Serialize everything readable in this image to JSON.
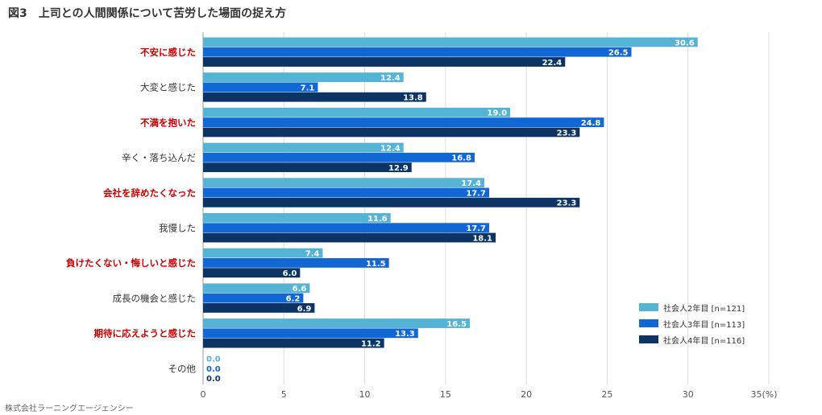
{
  "title": "図3　上司との人間関係について苦労した場面の捉え方",
  "footer": "株式会社ラーニングエージェンシー",
  "colors": {
    "series1": "#55b4d6",
    "series2": "#1167d4",
    "series3": "#0c3566",
    "highlight_label": "#cc0000",
    "normal_label": "#333333",
    "grid": "#dddddd"
  },
  "legend": [
    {
      "label": "社会人2年目 [n=121]"
    },
    {
      "label": "社会人3年目 [n=113]"
    },
    {
      "label": "社会人4年目 [n=116]"
    }
  ],
  "chart_data": {
    "type": "bar",
    "orientation": "horizontal",
    "title": "図3　上司との人間関係について苦労した場面の捉え方",
    "xlabel": "",
    "ylabel": "",
    "xlim": [
      0,
      35
    ],
    "xticks": [
      "0",
      "5",
      "10",
      "15",
      "20",
      "25",
      "30",
      "35(%)"
    ],
    "categories": [
      "不安に感じた",
      "大変と感じた",
      "不満を抱いた",
      "辛く・落ち込んだ",
      "会社を辞めたくなった",
      "我慢した",
      "負けたくない・悔しいと感じた",
      "成長の機会と感じた",
      "期待に応えようと感じた",
      "その他"
    ],
    "highlighted": [
      true,
      false,
      true,
      false,
      true,
      false,
      true,
      false,
      true,
      false
    ],
    "series": [
      {
        "name": "社会人2年目 [n=121]",
        "values": [
          30.6,
          12.4,
          19.0,
          12.4,
          17.4,
          11.6,
          7.4,
          6.6,
          16.5,
          0.0
        ]
      },
      {
        "name": "社会人3年目 [n=113]",
        "values": [
          26.5,
          7.1,
          24.8,
          16.8,
          17.7,
          17.7,
          11.5,
          6.2,
          13.3,
          0.0
        ]
      },
      {
        "name": "社会人4年目 [n=116]",
        "values": [
          22.4,
          13.8,
          23.3,
          12.9,
          23.3,
          18.1,
          6.0,
          6.9,
          11.2,
          0.0
        ]
      }
    ],
    "legend_position": "bottom-right",
    "grid": true
  }
}
